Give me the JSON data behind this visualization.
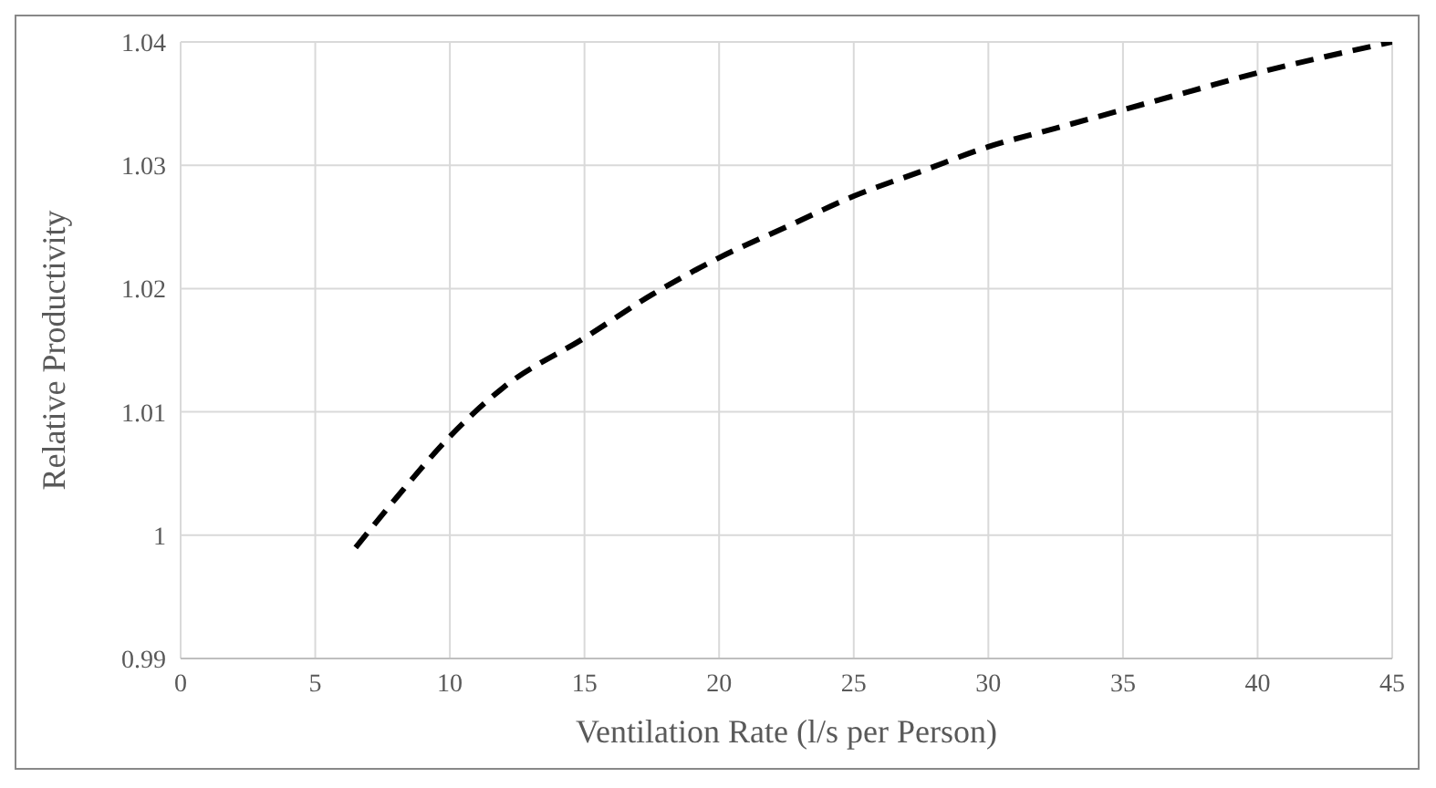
{
  "chart_data": {
    "type": "line",
    "xlabel": "Ventilation Rate (l/s per Person)",
    "ylabel": "Relative Productivity",
    "series": [
      {
        "color": "#000000",
        "x": [
          6.5,
          8,
          10,
          12,
          15,
          17.5,
          20,
          22.5,
          25,
          27.5,
          30,
          32.5,
          35,
          37.5,
          40,
          42.5,
          45
        ],
        "values": [
          0.999,
          1.003,
          1.008,
          1.012,
          1.016,
          1.0195,
          1.0225,
          1.025,
          1.0275,
          1.0295,
          1.0315,
          1.033,
          1.0345,
          1.036,
          1.0375,
          1.0388,
          1.04
        ]
      }
    ],
    "xlim": [
      0,
      45
    ],
    "xticks": [
      0,
      5,
      10,
      15,
      20,
      25,
      30,
      35,
      40,
      45
    ],
    "ylim": [
      0.99,
      1.04
    ],
    "yticks": [
      0.99,
      1,
      1.01,
      1.02,
      1.03,
      1.04
    ],
    "grid": true,
    "legend": false,
    "marker": "none",
    "line_style": "dashed"
  }
}
